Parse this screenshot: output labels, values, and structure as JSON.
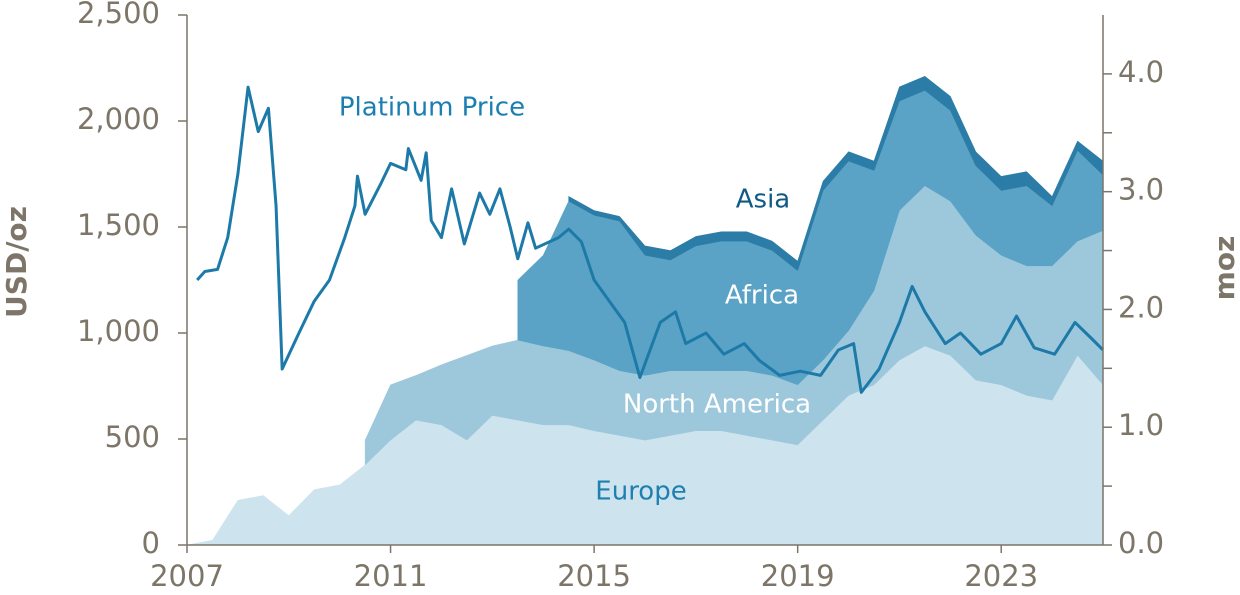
{
  "chart_data": {
    "type": "area",
    "y_label": "USD/oz",
    "y2_label": "moz",
    "xlim": [
      2007,
      2025
    ],
    "xticks": [
      2007,
      2011,
      2015,
      2019,
      2023
    ],
    "ylim": [
      0,
      2500
    ],
    "yticks": [
      0,
      500,
      {
        "value": 1000,
        "label": "1,000"
      },
      {
        "value": 1500,
        "label": "1,500"
      },
      {
        "value": 2000,
        "label": "2,000"
      },
      {
        "value": 2500,
        "label": "2,500"
      }
    ],
    "y2lim": [
      0,
      4.5
    ],
    "y2ticks": [
      {
        "value": 0,
        "label": "0.0"
      },
      {
        "value": 1,
        "label": "1.0"
      },
      {
        "value": 2,
        "label": "2.0"
      },
      {
        "value": 3,
        "label": "3.0"
      },
      {
        "value": 4,
        "label": "4.0"
      }
    ],
    "y2minorticks": [
      0.5,
      1.5,
      2.5,
      3.5
    ],
    "x": [
      2007,
      2007.5,
      2008,
      2008.5,
      2009,
      2009.5,
      2010,
      2010.5,
      2011,
      2011.5,
      2012,
      2012.5,
      2013,
      2013.5,
      2014,
      2014.5,
      2015,
      2015.5,
      2016,
      2016.5,
      2017,
      2017.5,
      2018,
      2018.5,
      2019,
      2019.5,
      2020,
      2020.5,
      2021,
      2021.5,
      2022,
      2022.5,
      2023,
      2023.5,
      2024,
      2024.5,
      2025
    ],
    "series": [
      {
        "name": "Europe",
        "axis": "y2",
        "color": "#cde3ee",
        "values": [
          0,
          0.04,
          0.38,
          0.42,
          0.25,
          0.47,
          0.51,
          0.68,
          0.89,
          1.06,
          1.02,
          0.89,
          1.1,
          1.06,
          1.02,
          1.02,
          0.97,
          0.93,
          0.89,
          0.93,
          0.97,
          0.97,
          0.93,
          0.89,
          0.85,
          1.06,
          1.27,
          1.36,
          1.57,
          1.69,
          1.61,
          1.4,
          1.36,
          1.27,
          1.23,
          1.61,
          1.36
        ]
      },
      {
        "name": "North America",
        "axis": "y2",
        "color": "#9dc8dc",
        "values": [
          null,
          null,
          null,
          null,
          null,
          null,
          null,
          0.21,
          0.47,
          0.38,
          0.51,
          0.72,
          0.59,
          0.68,
          0.67,
          0.63,
          0.6,
          0.55,
          0.55,
          0.55,
          0.51,
          0.51,
          0.55,
          0.55,
          0.51,
          0.51,
          0.55,
          0.8,
          1.27,
          1.36,
          1.31,
          1.23,
          1.1,
          1.1,
          1.14,
          0.97,
          1.31
        ]
      },
      {
        "name": "Africa",
        "axis": "y2",
        "color": "#5aa3c6",
        "values": [
          null,
          null,
          null,
          null,
          null,
          null,
          null,
          null,
          null,
          null,
          null,
          null,
          null,
          0.51,
          0.77,
          1.27,
          1.23,
          1.27,
          1.02,
          0.94,
          1.06,
          1.1,
          1.1,
          1.06,
          0.97,
          1.44,
          1.44,
          1.02,
          0.93,
          0.81,
          0.77,
          0.59,
          0.55,
          0.68,
          0.51,
          0.77,
          0.47
        ]
      },
      {
        "name": "Asia",
        "axis": "y2",
        "color": "#2b7ca6",
        "values": [
          null,
          null,
          null,
          null,
          null,
          null,
          null,
          null,
          null,
          null,
          null,
          null,
          null,
          null,
          null,
          0.04,
          0.04,
          0.04,
          0.08,
          0.08,
          0.08,
          0.08,
          0.08,
          0.08,
          0.08,
          0.08,
          0.08,
          0.08,
          0.12,
          0.12,
          0.12,
          0.12,
          0.12,
          0.12,
          0.08,
          0.08,
          0.12
        ]
      },
      {
        "name": "Platinum Price",
        "type": "line",
        "color": "#1d7aa8",
        "x": [
          2007.2,
          2007.35,
          2007.6,
          2007.8,
          2008.0,
          2008.2,
          2008.4,
          2008.6,
          2008.75,
          2008.87,
          2009.2,
          2009.5,
          2009.8,
          2010.1,
          2010.3,
          2010.35,
          2010.5,
          2010.8,
          2011.0,
          2011.3,
          2011.35,
          2011.6,
          2011.7,
          2011.8,
          2012.0,
          2012.2,
          2012.45,
          2012.75,
          2012.95,
          2013.15,
          2013.35,
          2013.5,
          2013.7,
          2013.85,
          2014.3,
          2014.5,
          2014.75,
          2015.0,
          2015.3,
          2015.6,
          2015.9,
          2016.3,
          2016.6,
          2016.8,
          2017.2,
          2017.55,
          2017.95,
          2018.25,
          2018.65,
          2019.05,
          2019.45,
          2019.8,
          2020.1,
          2020.25,
          2020.6,
          2021.0,
          2021.25,
          2021.5,
          2021.9,
          2022.2,
          2022.6,
          2023.0,
          2023.3,
          2023.65,
          2024.05,
          2024.45,
          2024.75,
          2025.0
        ],
        "values": [
          1250,
          1290,
          1300,
          1450,
          1750,
          2160,
          1950,
          2060,
          1600,
          830,
          1000,
          1150,
          1250,
          1450,
          1600,
          1740,
          1560,
          1700,
          1800,
          1770,
          1870,
          1720,
          1850,
          1530,
          1450,
          1680,
          1420,
          1660,
          1560,
          1680,
          1500,
          1350,
          1520,
          1400,
          1450,
          1490,
          1430,
          1250,
          1150,
          1050,
          790,
          1050,
          1100,
          950,
          1000,
          900,
          950,
          870,
          800,
          820,
          800,
          920,
          950,
          720,
          830,
          1050,
          1220,
          1100,
          950,
          1000,
          900,
          950,
          1080,
          930,
          900,
          1050,
          980,
          920
        ]
      }
    ]
  }
}
